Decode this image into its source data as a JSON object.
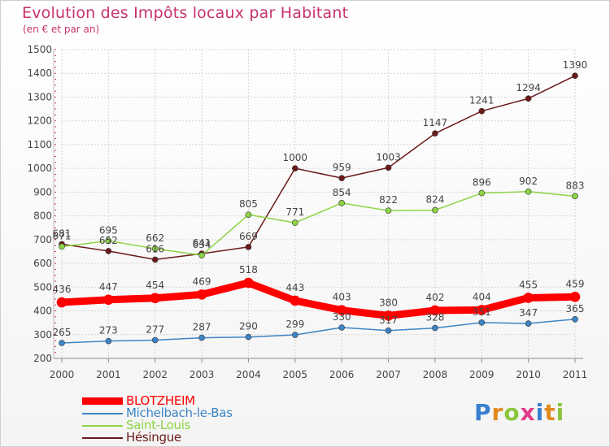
{
  "title": "Evolution des Impôts locaux par Habitant",
  "subtitle": "(en € et par an)",
  "logo": [
    "P",
    "r",
    "o",
    "x",
    "i",
    "t",
    "i"
  ],
  "logo_colors": [
    "#3a7fd0",
    "#e08a1e",
    "#8cc63f",
    "#e03c8a",
    "#3a7fd0",
    "#e08a1e",
    "#8cc63f"
  ],
  "chart_data": {
    "type": "line",
    "x": [
      "2000",
      "2001",
      "2002",
      "2003",
      "2004",
      "2005",
      "2006",
      "2007",
      "2008",
      "2009",
      "2010",
      "2011"
    ],
    "ylim": [
      200,
      1500
    ],
    "yticks": [
      "200",
      "300",
      "400",
      "500",
      "600",
      "700",
      "800",
      "900",
      "1000",
      "1100",
      "1200",
      "1300",
      "1400",
      "1500"
    ],
    "grid": true,
    "legend_position": "bottom-left",
    "series": [
      {
        "name": "BLOTZHEIM",
        "color": "#ff0000",
        "values": [
          436,
          447,
          454,
          469,
          518,
          443,
          403,
          380,
          402,
          404,
          455,
          459
        ],
        "labels": [
          "436",
          "447",
          "454",
          "469",
          "518",
          "443",
          "403",
          "380",
          "402",
          "404",
          "455",
          "459"
        ]
      },
      {
        "name": "Michelbach-le-Bas",
        "color": "#3d85c6",
        "values": [
          265,
          273,
          277,
          287,
          290,
          299,
          330,
          317,
          328,
          351,
          347,
          365
        ],
        "labels": [
          "265",
          "273",
          "277",
          "287",
          "290",
          "299",
          "330",
          "317",
          "328",
          "351",
          "347",
          "365"
        ]
      },
      {
        "name": "Saint-Louis",
        "color": "#8cd444",
        "values": [
          671,
          695,
          662,
          634,
          805,
          771,
          854,
          822,
          824,
          896,
          902,
          883
        ],
        "labels": [
          "671",
          "695",
          "662",
          "634",
          "805",
          "771",
          "854",
          "822",
          "824",
          "896",
          "902",
          "883"
        ]
      },
      {
        "name": "Hésingue",
        "color": "#6b1a1a",
        "values": [
          681,
          652,
          616,
          641,
          669,
          1000,
          959,
          1003,
          1147,
          1241,
          1294,
          1390
        ],
        "labels": [
          "681",
          "652",
          "616",
          "641",
          "669",
          "1000",
          "959",
          "1003",
          "1147",
          "1241",
          "1294",
          "1390"
        ]
      }
    ]
  }
}
